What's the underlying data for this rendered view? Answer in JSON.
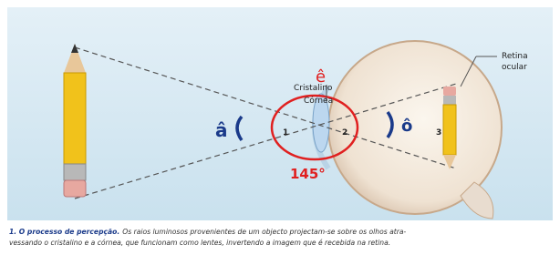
{
  "labels": {
    "retina_line1": "Retina",
    "retina_line2": "ocular",
    "cristalino": "Cristalino",
    "cornea": "Córnea",
    "angle_e": "ê",
    "angle_a": "â",
    "angle_o": "ô",
    "point_1": "1",
    "point_2": "2",
    "point_3": "3",
    "angle_value": "145°"
  },
  "caption": {
    "title": "1. O processo de percepção.",
    "line1": "Os raios luminosos provenientes de um objecto projectam-se sobre os olhos atra-",
    "line2": "vessando o cristalino e a córnea, que funcionam como lentes, invertendo a imagem que é recebida na retina."
  }
}
